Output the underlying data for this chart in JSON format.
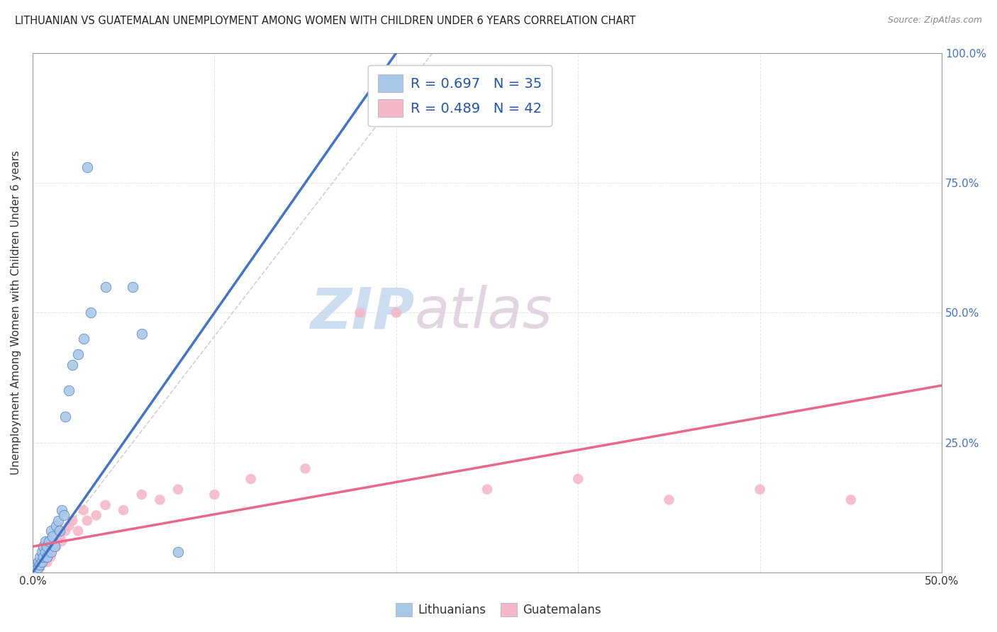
{
  "title": "LITHUANIAN VS GUATEMALAN UNEMPLOYMENT AMONG WOMEN WITH CHILDREN UNDER 6 YEARS CORRELATION CHART",
  "source": "Source: ZipAtlas.com",
  "ylabel": "Unemployment Among Women with Children Under 6 years",
  "legend_entries": [
    {
      "label": "R = 0.697   N = 35",
      "color": "#a8c8e8"
    },
    {
      "label": "R = 0.489   N = 42",
      "color": "#f4b8c8"
    }
  ],
  "legend_labels_bottom": [
    "Lithuanians",
    "Guatemalans"
  ],
  "xlim": [
    0,
    0.5
  ],
  "ylim": [
    0,
    1.0
  ],
  "background_color": "#ffffff",
  "grid_color": "#dddddd",
  "watermark_text": "ZIPatlas",
  "watermark_color": "#d0dff0",
  "blue_scatter": [
    [
      0.001,
      0.01
    ],
    [
      0.002,
      0.005
    ],
    [
      0.003,
      0.02
    ],
    [
      0.003,
      0.01
    ],
    [
      0.004,
      0.03
    ],
    [
      0.004,
      0.015
    ],
    [
      0.005,
      0.02
    ],
    [
      0.005,
      0.04
    ],
    [
      0.006,
      0.03
    ],
    [
      0.006,
      0.05
    ],
    [
      0.007,
      0.04
    ],
    [
      0.007,
      0.06
    ],
    [
      0.008,
      0.05
    ],
    [
      0.008,
      0.03
    ],
    [
      0.009,
      0.06
    ],
    [
      0.01,
      0.04
    ],
    [
      0.01,
      0.08
    ],
    [
      0.011,
      0.07
    ],
    [
      0.012,
      0.05
    ],
    [
      0.013,
      0.09
    ],
    [
      0.014,
      0.1
    ],
    [
      0.015,
      0.08
    ],
    [
      0.016,
      0.12
    ],
    [
      0.017,
      0.11
    ],
    [
      0.018,
      0.3
    ],
    [
      0.02,
      0.35
    ],
    [
      0.022,
      0.4
    ],
    [
      0.025,
      0.42
    ],
    [
      0.028,
      0.45
    ],
    [
      0.03,
      0.78
    ],
    [
      0.032,
      0.5
    ],
    [
      0.04,
      0.55
    ],
    [
      0.055,
      0.55
    ],
    [
      0.06,
      0.46
    ],
    [
      0.08,
      0.04
    ]
  ],
  "pink_scatter": [
    [
      0.002,
      0.01
    ],
    [
      0.003,
      0.02
    ],
    [
      0.004,
      0.01
    ],
    [
      0.005,
      0.03
    ],
    [
      0.005,
      0.02
    ],
    [
      0.006,
      0.04
    ],
    [
      0.006,
      0.02
    ],
    [
      0.007,
      0.03
    ],
    [
      0.007,
      0.05
    ],
    [
      0.008,
      0.04
    ],
    [
      0.008,
      0.02
    ],
    [
      0.009,
      0.06
    ],
    [
      0.01,
      0.05
    ],
    [
      0.01,
      0.03
    ],
    [
      0.011,
      0.07
    ],
    [
      0.012,
      0.06
    ],
    [
      0.013,
      0.05
    ],
    [
      0.014,
      0.08
    ],
    [
      0.015,
      0.07
    ],
    [
      0.016,
      0.06
    ],
    [
      0.018,
      0.08
    ],
    [
      0.02,
      0.09
    ],
    [
      0.022,
      0.1
    ],
    [
      0.025,
      0.08
    ],
    [
      0.028,
      0.12
    ],
    [
      0.03,
      0.1
    ],
    [
      0.035,
      0.11
    ],
    [
      0.04,
      0.13
    ],
    [
      0.05,
      0.12
    ],
    [
      0.06,
      0.15
    ],
    [
      0.07,
      0.14
    ],
    [
      0.08,
      0.16
    ],
    [
      0.1,
      0.15
    ],
    [
      0.12,
      0.18
    ],
    [
      0.15,
      0.2
    ],
    [
      0.18,
      0.5
    ],
    [
      0.2,
      0.5
    ],
    [
      0.25,
      0.16
    ],
    [
      0.3,
      0.18
    ],
    [
      0.35,
      0.14
    ],
    [
      0.4,
      0.16
    ],
    [
      0.45,
      0.14
    ]
  ],
  "blue_line_x": [
    0.0,
    0.2
  ],
  "blue_line_y": [
    0.0,
    1.0
  ],
  "pink_line_x": [
    0.0,
    0.5
  ],
  "pink_line_y": [
    0.05,
    0.36
  ],
  "blue_line_color": "#4472c4",
  "pink_line_color": "#e8688a",
  "scatter_blue_color": "#a8c8e8",
  "scatter_pink_color": "#f4b8c8",
  "diag_line_color": "#bbbbbb"
}
